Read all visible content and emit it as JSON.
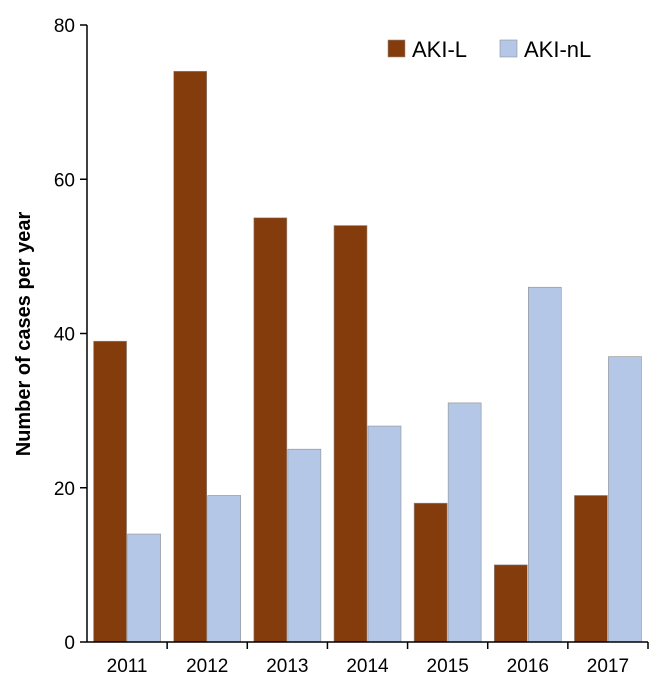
{
  "chart_data": {
    "type": "bar",
    "categories": [
      "2011",
      "2012",
      "2013",
      "2014",
      "2015",
      "2016",
      "2017"
    ],
    "series": [
      {
        "name": "AKI-L",
        "values": [
          39,
          74,
          55,
          54,
          18,
          10,
          19
        ],
        "color": "#843c0c"
      },
      {
        "name": "AKI-nL",
        "values": [
          14,
          19,
          25,
          28,
          31,
          46,
          37
        ],
        "color": "#b4c7e7"
      }
    ],
    "ylabel": "Number of cases per year",
    "xlabel": "",
    "ylim": [
      0,
      80
    ],
    "yticks": [
      0,
      20,
      40,
      60,
      80
    ],
    "grid": false,
    "legend_position": "top-right"
  }
}
